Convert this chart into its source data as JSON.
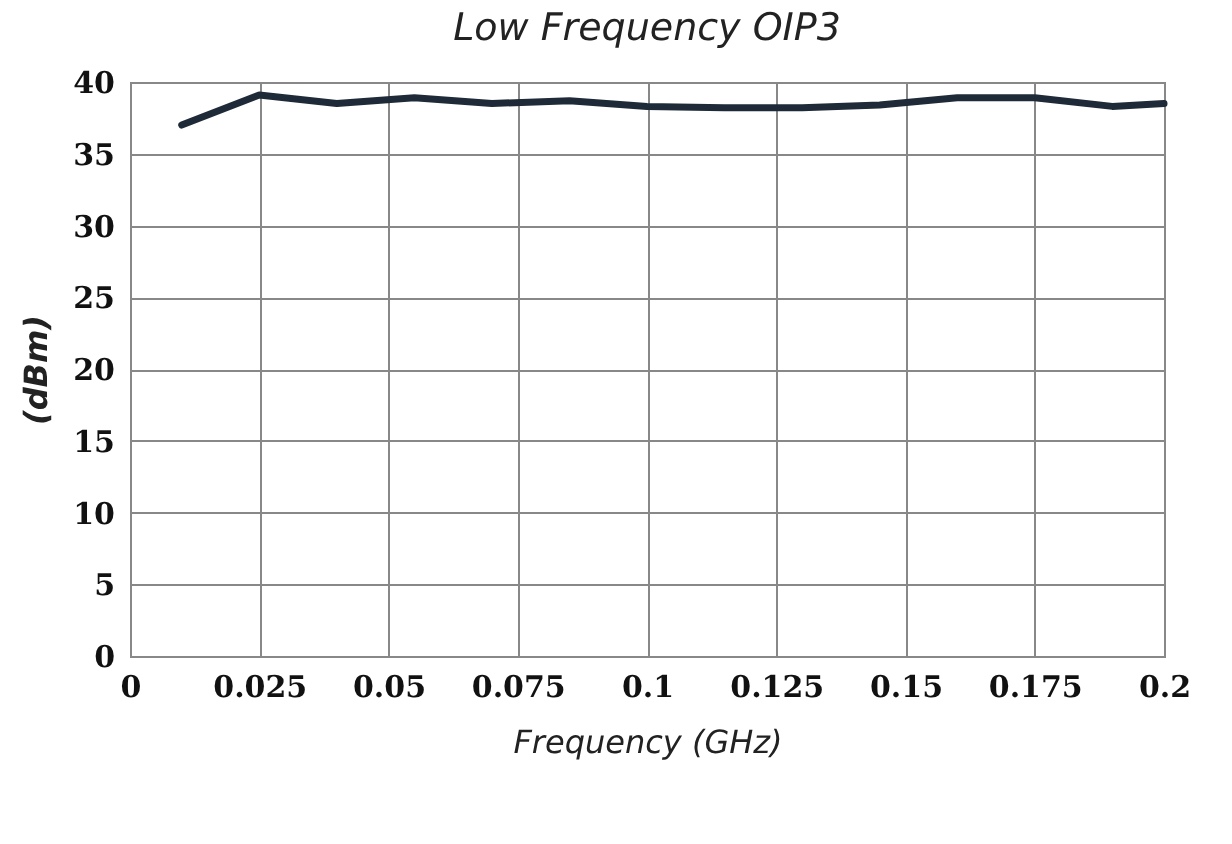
{
  "chart_data": {
    "type": "line",
    "title": "Low Frequency OIP3",
    "xlabel": "Frequency (GHz)",
    "ylabel": "(dBm)",
    "x": [
      0.01,
      0.025,
      0.04,
      0.055,
      0.07,
      0.085,
      0.1,
      0.115,
      0.13,
      0.145,
      0.16,
      0.175,
      0.19,
      0.2
    ],
    "series": [
      {
        "color": "#1f2a38",
        "values": [
          37,
          39.1,
          38.5,
          38.9,
          38.5,
          38.7,
          38.3,
          38.2,
          38.2,
          38.4,
          38.9,
          38.9,
          38.3,
          38.5
        ]
      }
    ],
    "xlim": [
      0,
      0.2
    ],
    "xticks": [
      0,
      0.025,
      0.05,
      0.075,
      0.1,
      0.125,
      0.15,
      0.175,
      0.2
    ],
    "ylim": [
      0,
      40
    ],
    "yticks": [
      0,
      5,
      10,
      15,
      20,
      25,
      30,
      35,
      40
    ],
    "grid": true,
    "legend": false,
    "marker": "none",
    "line_style": "solid"
  }
}
